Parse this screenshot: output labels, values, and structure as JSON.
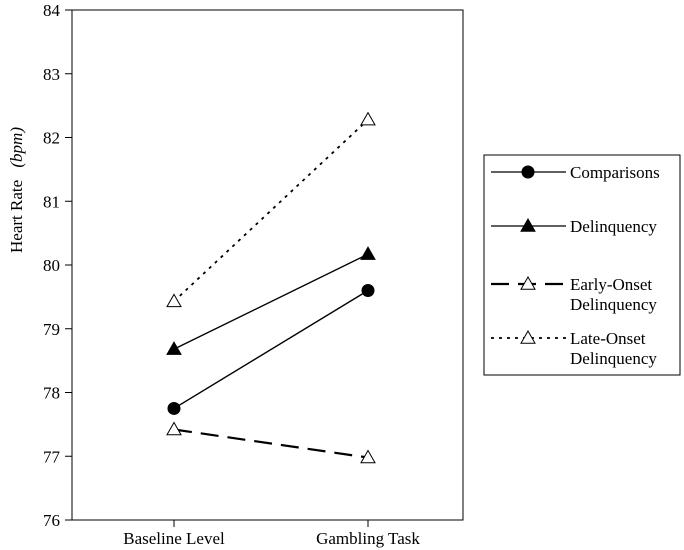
{
  "chart_data": {
    "type": "line",
    "title": "",
    "xlabel": "",
    "ylabel": "Heart Rate",
    "ylabel_unit": "(bpm)",
    "categories": [
      "Baseline Level",
      "Gambling Task"
    ],
    "ylim": [
      76,
      84
    ],
    "yticks": [
      "76",
      "77",
      "78",
      "79",
      "80",
      "81",
      "82",
      "83",
      "84"
    ],
    "grid": false,
    "legend_position": "right",
    "series": [
      {
        "name": "Comparisons",
        "values": [
          77.75,
          79.6
        ],
        "marker": "circle-filled",
        "line": "solid"
      },
      {
        "name": "Delinquency",
        "values": [
          78.68,
          80.17
        ],
        "marker": "triangle-filled",
        "line": "solid"
      },
      {
        "name": "Early-Onset Delinquency",
        "legend_lines": [
          "Early-Onset",
          "Delinquency"
        ],
        "values": [
          77.42,
          76.98
        ],
        "marker": "triangle-open",
        "line": "dashed"
      },
      {
        "name": "Late-Onset Delinquency",
        "legend_lines": [
          "Late-Onset",
          "Delinquency"
        ],
        "values": [
          79.43,
          82.28
        ],
        "marker": "triangle-open",
        "line": "dotted"
      }
    ]
  }
}
